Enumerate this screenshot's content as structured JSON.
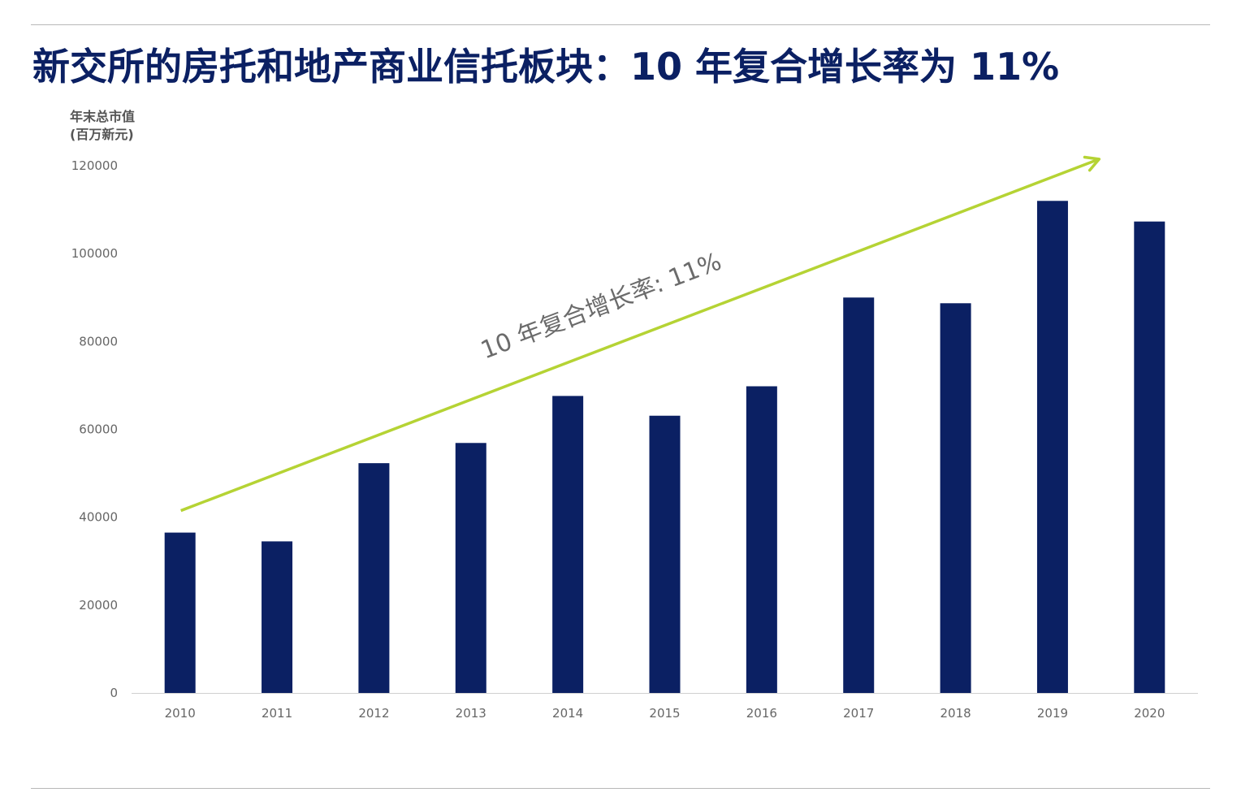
{
  "title": "新交所的房托和地产商业信托板块：10 年复合增长率为 11%",
  "y_unit_line1": "年末总市值",
  "y_unit_line2": "(百万新元)",
  "colors": {
    "bar": "#0b2063",
    "trend_arrow": "#b5d334",
    "title": "#0b2063",
    "axis_text": "#666666",
    "annotation": "#6b6b6b"
  },
  "chart_data": {
    "type": "bar",
    "title": "新交所的房托和地产商业信托板块：10 年复合增长率为 11%",
    "xlabel": "",
    "ylabel": "年末总市值 (百万新元)",
    "categories": [
      "2010",
      "2011",
      "2012",
      "2013",
      "2014",
      "2015",
      "2016",
      "2017",
      "2018",
      "2019",
      "2020"
    ],
    "series": [
      {
        "values": [
          36500,
          34500,
          52300,
          56900,
          67600,
          63100,
          69800,
          90000,
          88700,
          112000,
          107300
        ]
      }
    ],
    "ylim": [
      0,
      120000
    ],
    "yticks": [
      "0",
      "20000",
      "40000",
      "60000",
      "80000",
      "100000",
      "120000"
    ],
    "grid": false,
    "legend": "none",
    "annotation": {
      "text": "10 年复合增长率: 11%",
      "arrow_from": {
        "x": "2010",
        "y": 41500
      },
      "arrow_to": {
        "x": "2020",
        "y": 121500
      }
    }
  }
}
